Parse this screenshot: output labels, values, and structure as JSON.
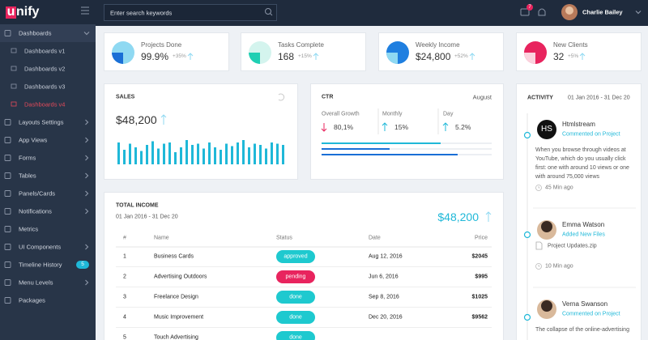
{
  "topbar": {
    "logo_mark": "u",
    "logo_text": "nify",
    "search_placeholder": "Enter search keywords",
    "messages_badge": "7",
    "user": "Charlie Bailey"
  },
  "sidebar": {
    "menu": [
      {
        "label": "Dashboards",
        "children": [
          "Dashboards v1",
          "Dashboards v2",
          "Dashboards v3",
          "Dashboards v4"
        ],
        "active_child": 3
      },
      {
        "label": "Layouts Settings",
        "arrow": true
      },
      {
        "label": "App Views",
        "arrow": true
      },
      {
        "label": "Forms",
        "arrow": true
      },
      {
        "label": "Tables",
        "arrow": true
      },
      {
        "label": "Panels/Cards",
        "arrow": true
      },
      {
        "label": "Notifications",
        "arrow": true
      },
      {
        "label": "Metrics"
      },
      {
        "label": "UI Components",
        "arrow": true
      },
      {
        "label": "Timeline History",
        "badge": "5"
      },
      {
        "label": "Menu Levels",
        "arrow": true
      },
      {
        "label": "Packages"
      }
    ]
  },
  "stats": [
    {
      "title": "Projects Done",
      "value": "99.9%",
      "change": "+35%",
      "colors": [
        "#8fd9f2",
        "#1a6fd6"
      ]
    },
    {
      "title": "Tasks Complete",
      "value": "168",
      "change": "+15%",
      "colors": [
        "#d4f4ee",
        "#1fcfb3"
      ]
    },
    {
      "title": "Weekly Income",
      "value": "$24,800",
      "change": "+52%",
      "colors": [
        "#1f7fe0",
        "#8fd9f2"
      ]
    },
    {
      "title": "New Clients",
      "value": "32",
      "change": "+5%",
      "colors": [
        "#e8245e",
        "#fbd3de"
      ]
    }
  ],
  "sales": {
    "title": "SALES",
    "value": "$48,200",
    "color": "#1fb8d8",
    "bars": [
      90,
      60,
      85,
      70,
      55,
      80,
      95,
      65,
      85,
      90,
      50,
      70,
      100,
      80,
      85,
      65,
      90,
      70,
      60,
      85,
      75,
      90,
      100,
      70,
      85,
      80,
      65,
      90,
      85,
      80
    ]
  },
  "ctr": {
    "title": "CTR",
    "period": "August",
    "metrics": [
      {
        "label": "Overall Growth",
        "value": "80,1%",
        "trend": "down",
        "color": "#e8245e"
      },
      {
        "label": "Monthly",
        "value": "15%",
        "trend": "up",
        "color": "#1fb8d8"
      },
      {
        "label": "Day",
        "value": "5.2%",
        "trend": "up",
        "color": "#1fb8d8"
      }
    ],
    "progress": [
      {
        "value": 70,
        "color": "#1fb8d8"
      },
      {
        "value": 40,
        "color": "#1a6fd6"
      },
      {
        "value": 80,
        "color": "#1a6fd6"
      }
    ]
  },
  "income": {
    "title": "TOTAL INCOME",
    "period": "01 Jan 2016 - 31 Dec 20",
    "value": "$48,200",
    "columns": [
      "#",
      "Name",
      "Status",
      "Date",
      "Price"
    ],
    "rows": [
      {
        "no": "1",
        "name": "Business Cards",
        "status": "approved",
        "status_color": "#1ec9cf",
        "date": "Aug 12, 2016",
        "price": "$2045"
      },
      {
        "no": "2",
        "name": "Advertising Outdoors",
        "status": "pending",
        "status_color": "#e8245e",
        "date": "Jun 6, 2016",
        "price": "$995"
      },
      {
        "no": "3",
        "name": "Freelance Design",
        "status": "done",
        "status_color": "#1ec9cf",
        "date": "Sep 8, 2016",
        "price": "$1025"
      },
      {
        "no": "4",
        "name": "Music Improvement",
        "status": "done",
        "status_color": "#1ec9cf",
        "date": "Dec 20, 2016",
        "price": "$9562"
      },
      {
        "no": "5",
        "name": "Touch Advertising",
        "status": "done",
        "status_color": "#1ec9cf"
      }
    ]
  },
  "activity": {
    "title": "ACTIVITY",
    "period": "01 Jan 2016 - 31 Dec 20",
    "items": [
      {
        "initials": "HS",
        "name": "Htmlstream",
        "action": "Commented on Project",
        "text": "When you browse through videos at YouTube, which do you usually click first: one with around 10 views or one with around 75,000 views",
        "time": "45 Min ago"
      },
      {
        "name": "Emma Watson",
        "action": "Added New Files",
        "file": "Project Updates.zip",
        "time": "10 Min ago"
      },
      {
        "name": "Verna Swanson",
        "action": "Commented on Project",
        "text": "The collapse of the online-advertising"
      }
    ]
  }
}
